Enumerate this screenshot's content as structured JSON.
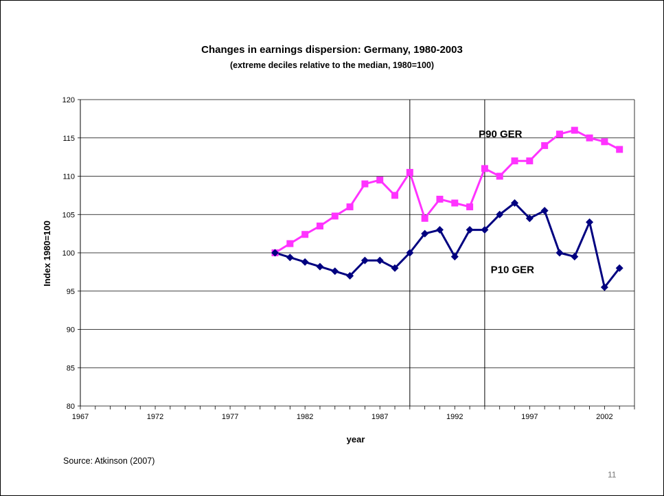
{
  "slide": {
    "source": "Source: Atkinson (2007)",
    "page_number": "11"
  },
  "chart_data": {
    "type": "line",
    "title": "Changes in earnings dispersion:   Germany, 1980-2003",
    "subtitle": "(extreme deciles relative to the median, 1980=100)",
    "xlabel": "year",
    "ylabel": "Index 1980=100",
    "xlim": [
      1967,
      2004
    ],
    "ylim": [
      80,
      120
    ],
    "x_ticks": [
      1967,
      1972,
      1977,
      1982,
      1987,
      1992,
      1997,
      2002
    ],
    "x_tick_labels": [
      "1967",
      "1972",
      "1977",
      "1982",
      "1987",
      "1992",
      "1997",
      "2002"
    ],
    "y_ticks": [
      80,
      85,
      90,
      95,
      100,
      105,
      110,
      115,
      120
    ],
    "y_tick_labels": [
      "80",
      "85",
      "90",
      "95",
      "100",
      "105",
      "110",
      "115",
      "120"
    ],
    "grid": "horizontal",
    "vertical_lines": [
      1989,
      1994
    ],
    "x": [
      1980,
      1981,
      1982,
      1983,
      1984,
      1985,
      1986,
      1987,
      1988,
      1989,
      1990,
      1991,
      1992,
      1993,
      1994,
      1995,
      1996,
      1997,
      1998,
      1999,
      2000,
      2001,
      2002,
      2003
    ],
    "series": [
      {
        "name": "P90 GER",
        "color": "#ff33ff",
        "marker": "square",
        "values": [
          100,
          101.2,
          102.4,
          103.5,
          104.8,
          106,
          109,
          109.5,
          107.5,
          110.5,
          104.5,
          107,
          106.5,
          106,
          111,
          110,
          112,
          112,
          114,
          115.5,
          116,
          115,
          114.5,
          113.5
        ]
      },
      {
        "name": "P10 GER",
        "color": "#000080",
        "marker": "diamond",
        "values": [
          100,
          99.4,
          98.8,
          98.2,
          97.6,
          97,
          99,
          99,
          98,
          100,
          102.5,
          103,
          99.5,
          103,
          103,
          105,
          106.5,
          104.5,
          105.5,
          100,
          99.5,
          104,
          95.5,
          98
        ]
      }
    ],
    "annotations": [
      {
        "text": "P90 GER",
        "x": 1993.6,
        "y": 115.5
      },
      {
        "text": "P10 GER",
        "x": 1994.4,
        "y": 97.8
      }
    ]
  }
}
